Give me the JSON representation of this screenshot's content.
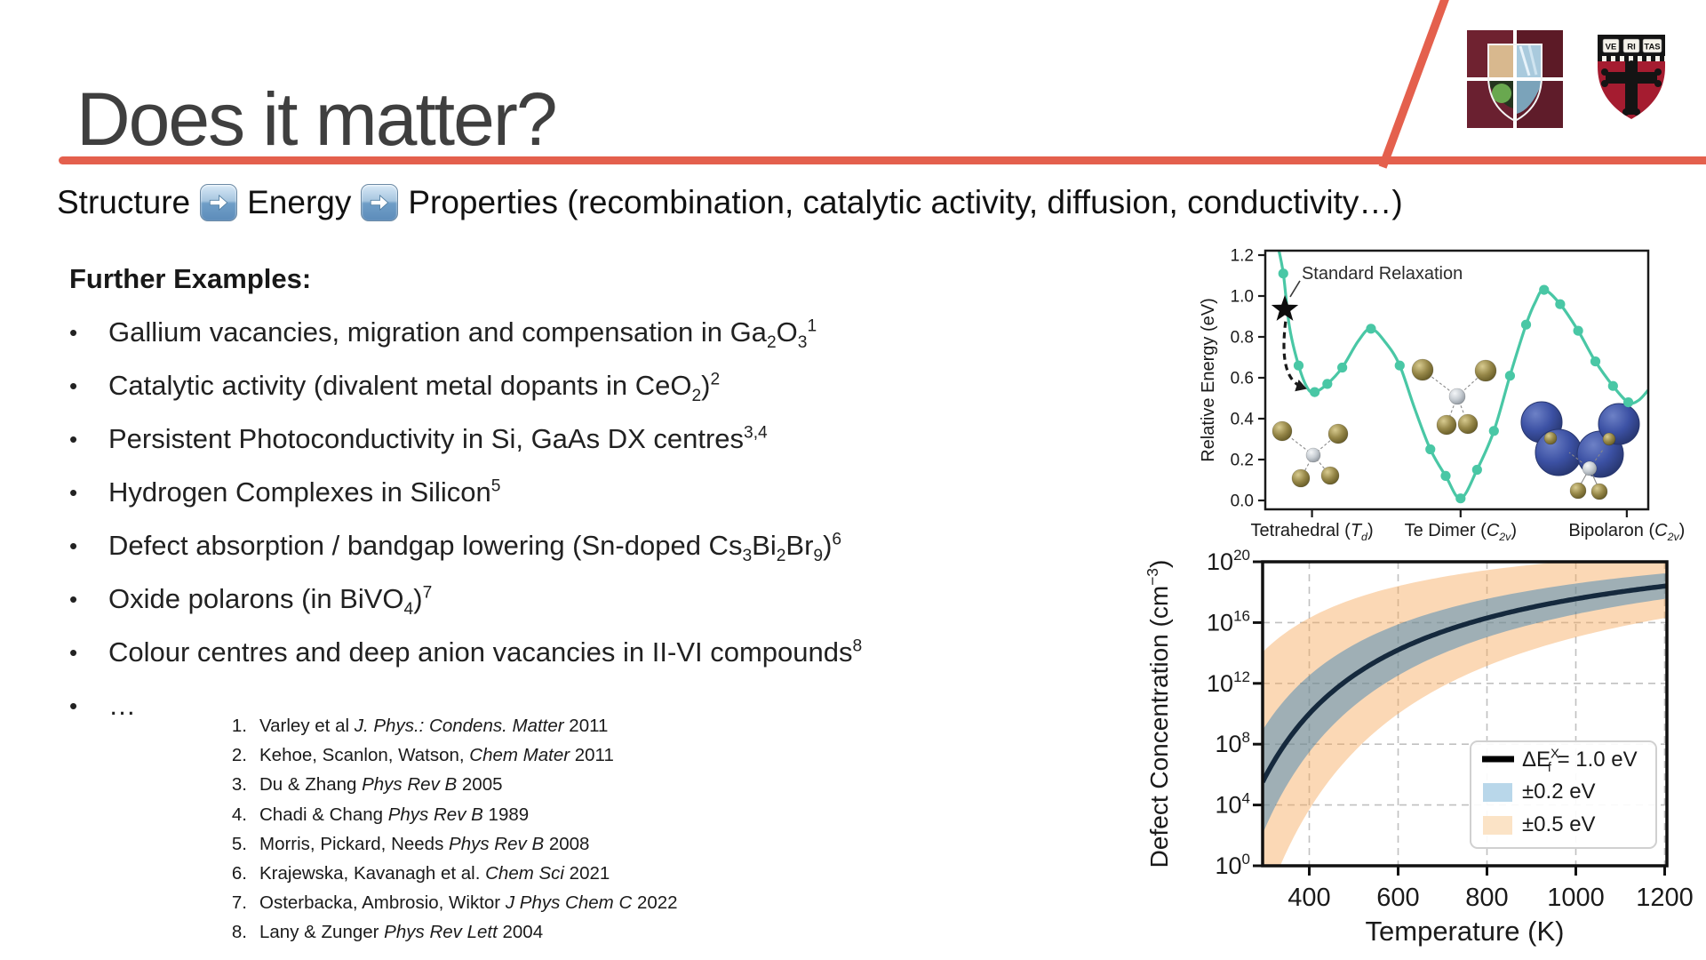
{
  "slide": {
    "title": "Does it matter?",
    "accent_color": "#e4604d",
    "subtitle": {
      "structure": "Structure",
      "energy": "Energy",
      "properties": "Properties (recombination, catalytic activity, diffusion, conductivity…)"
    },
    "further_examples_heading": "Further Examples:",
    "bullets": [
      [
        {
          "t": "Gallium vacancies, migration and compensation in Ga"
        },
        {
          "sub": "2"
        },
        {
          "t": "O"
        },
        {
          "sub": "3"
        },
        {
          "sup": "1"
        }
      ],
      [
        {
          "t": "Catalytic activity (divalent metal dopants in CeO"
        },
        {
          "sub": "2"
        },
        {
          "t": ")"
        },
        {
          "sup": "2"
        }
      ],
      [
        {
          "t": "Persistent Photoconductivity in Si, GaAs DX centres"
        },
        {
          "sup": "3,4"
        }
      ],
      [
        {
          "t": "Hydrogen Complexes in Silicon"
        },
        {
          "sup": "5"
        }
      ],
      [
        {
          "t": "Defect absorption / bandgap lowering (Sn-doped Cs"
        },
        {
          "sub": "3"
        },
        {
          "t": "Bi"
        },
        {
          "sub": "2"
        },
        {
          "t": "Br"
        },
        {
          "sub": "9"
        },
        {
          "t": ")"
        },
        {
          "sup": "6"
        }
      ],
      [
        {
          "t": "Oxide polarons (in BiVO"
        },
        {
          "sub": "4"
        },
        {
          "t": ")"
        },
        {
          "sup": "7"
        }
      ],
      [
        {
          "t": "Colour centres and deep anion vacancies in II-VI compounds"
        },
        {
          "sup": "8"
        }
      ],
      [
        {
          "t": "…"
        }
      ]
    ],
    "references": [
      {
        "n": "1.",
        "segments": [
          {
            "t": "Varley et al "
          },
          {
            "i": "J. Phys.: Condens. Matter"
          },
          {
            "t": " 2011"
          }
        ]
      },
      {
        "n": "2.",
        "segments": [
          {
            "t": "Kehoe, Scanlon, Watson, "
          },
          {
            "i": "Chem Mater"
          },
          {
            "t": " 2011"
          }
        ]
      },
      {
        "n": "3.",
        "segments": [
          {
            "t": "Du & Zhang "
          },
          {
            "i": "Phys Rev B"
          },
          {
            "t": " 2005"
          }
        ]
      },
      {
        "n": "4.",
        "segments": [
          {
            "t": "Chadi & Chang "
          },
          {
            "i": "Phys Rev B"
          },
          {
            "t": " 1989"
          }
        ]
      },
      {
        "n": "5.",
        "segments": [
          {
            "t": "Morris, Pickard, Needs "
          },
          {
            "i": "Phys Rev B"
          },
          {
            "t": " 2008"
          }
        ]
      },
      {
        "n": "6.",
        "segments": [
          {
            "t": "Krajewska, Kavanagh et al. "
          },
          {
            "i": "Chem Sci"
          },
          {
            "t": " 2021"
          }
        ]
      },
      {
        "n": "7.",
        "segments": [
          {
            "t": "Osterbacka, Ambrosio, Wiktor "
          },
          {
            "i": "J Phys Chem C"
          },
          {
            "t": " 2022"
          }
        ]
      },
      {
        "n": "8.",
        "segments": [
          {
            "t": "Lany & Zunger "
          },
          {
            "i": "Phys Rev Lett"
          },
          {
            "t": " 2004"
          }
        ]
      }
    ]
  },
  "logos": {
    "right_motto": [
      "VE",
      "RI",
      "TAS"
    ],
    "crimson": "#a51c30",
    "maroon": "#6f2230"
  },
  "chart_data": [
    {
      "type": "line",
      "name": "configuration-coordinate energy landscape",
      "ylabel": "Relative Energy (eV)",
      "yticks": [
        0.0,
        0.2,
        0.4,
        0.6,
        0.8,
        1.0,
        1.2
      ],
      "ylim": [
        0,
        1.2
      ],
      "line_color": "#49c7a5",
      "annotation": "Standard Relaxation",
      "xticks": [
        {
          "pos": 0.122,
          "label": [
            {
              "t": "Tetrahedral ("
            },
            {
              "i": "T"
            },
            {
              "isub": "d"
            },
            {
              "t": ")"
            }
          ]
        },
        {
          "pos": 0.51,
          "label": [
            {
              "t": "Te Dimer ("
            },
            {
              "i": "C"
            },
            {
              "isub": "2v"
            },
            {
              "t": ")"
            }
          ]
        },
        {
          "pos": 0.944,
          "label": [
            {
              "t": "Bipolaron ("
            },
            {
              "i": "C"
            },
            {
              "isub": "2v"
            },
            {
              "t": ")"
            }
          ]
        }
      ],
      "curve": {
        "x": [
          0.03,
          0.047,
          0.063,
          0.087,
          0.11,
          0.129,
          0.162,
          0.201,
          0.243,
          0.276,
          0.315,
          0.351,
          0.39,
          0.431,
          0.471,
          0.51,
          0.553,
          0.597,
          0.639,
          0.681,
          0.705,
          0.728,
          0.77,
          0.817,
          0.862,
          0.908,
          0.948,
          0.975,
          1.0
        ],
        "y": [
          1.27,
          1.11,
          0.85,
          0.66,
          0.55,
          0.53,
          0.57,
          0.65,
          0.78,
          0.84,
          0.77,
          0.66,
          0.45,
          0.25,
          0.12,
          0.01,
          0.15,
          0.34,
          0.61,
          0.86,
          0.97,
          1.03,
          0.96,
          0.83,
          0.68,
          0.56,
          0.48,
          0.49,
          0.54
        ]
      },
      "markers": {
        "x": [
          0.047,
          0.087,
          0.129,
          0.162,
          0.201,
          0.276,
          0.351,
          0.431,
          0.471,
          0.51,
          0.553,
          0.597,
          0.639,
          0.681,
          0.728,
          0.77,
          0.817,
          0.862,
          0.908,
          0.948
        ],
        "y": [
          1.11,
          0.66,
          0.53,
          0.57,
          0.65,
          0.84,
          0.66,
          0.25,
          0.12,
          0.01,
          0.15,
          0.34,
          0.61,
          0.86,
          1.03,
          0.96,
          0.83,
          0.68,
          0.56,
          0.48
        ]
      },
      "star": {
        "x": 0.051,
        "y": 0.935
      },
      "relaxation_arrow": {
        "from": [
          0.053,
          0.875
        ],
        "to": [
          0.102,
          0.55
        ]
      }
    },
    {
      "type": "line",
      "name": "defect concentration vs temperature (Arrhenius)",
      "xlabel": "Temperature (K)",
      "ylabel_segments": [
        {
          "t": "Defect Concentration (cm"
        },
        {
          "sup": "−3"
        },
        {
          "t": ")"
        }
      ],
      "xlim": [
        295,
        1205
      ],
      "xticks": [
        400,
        600,
        800,
        1000,
        1200
      ],
      "ylim_log10": [
        0,
        20
      ],
      "ytick_exponents": [
        0,
        4,
        8,
        12,
        16,
        20
      ],
      "grid": true,
      "legend_position": "lower right",
      "line_color": "#15293d",
      "line_label_segments": [
        {
          "t": "ΔE"
        },
        {
          "sup": "X"
        },
        {
          "sub": "f",
          "dx": -0.55
        },
        {
          "t": " = 1.0 eV"
        }
      ],
      "arrhenius": {
        "log10_prefactor": 22.6,
        "decades_per_eV": 5040,
        "E_f_eV": 1.0
      },
      "bands": [
        {
          "delta_eV": 0.2,
          "fill": "#1f77b4",
          "opacity": 0.42,
          "label": "±0.2 eV",
          "legend_fill": "#b9d7ea"
        },
        {
          "delta_eV": 0.5,
          "fill": "#f7a95c",
          "opacity": 0.45,
          "label": "±0.5 eV",
          "legend_fill": "#fbe3c6"
        }
      ],
      "series_table": {
        "T_K": [
          300,
          350,
          400,
          450,
          500,
          550,
          600,
          650,
          700,
          750,
          800,
          850,
          900,
          950,
          1000,
          1050,
          1100,
          1150,
          1200
        ],
        "log10_N": [
          5.8,
          8.2,
          10.0,
          11.4,
          12.52,
          13.44,
          14.2,
          14.85,
          15.4,
          15.88,
          16.3,
          16.67,
          17.0,
          17.29,
          17.56,
          17.8,
          18.02,
          18.22,
          18.4
        ]
      }
    }
  ]
}
